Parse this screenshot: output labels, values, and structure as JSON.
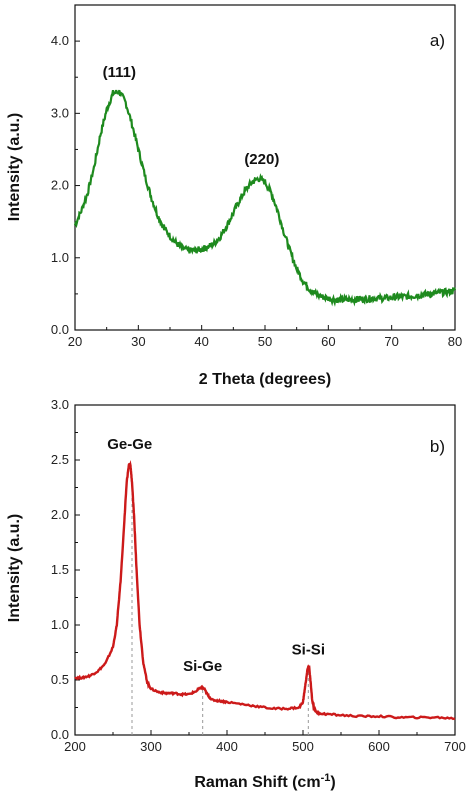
{
  "chart_data": [
    {
      "type": "line",
      "panel_label": "a)",
      "xlabel": "2 Theta (degrees)",
      "ylabel": "Intensity (a.u.)",
      "xlim": [
        20,
        80
      ],
      "ylim": [
        0.0,
        4.5
      ],
      "xticks": [
        20,
        30,
        40,
        50,
        60,
        70,
        80
      ],
      "xtick_labels": [
        "20",
        "30",
        "40",
        "50",
        "60",
        "70",
        "80"
      ],
      "yticks": [
        0.0,
        1.0,
        2.0,
        3.0,
        4.0
      ],
      "ytick_labels": [
        "0.0",
        "1.0",
        "2.0",
        "3.0",
        "4.0"
      ],
      "grid": false,
      "legend": "none",
      "color": "#1e8a1e",
      "series": [
        {
          "x": [
            20,
            21,
            22,
            23,
            24,
            25,
            26,
            27,
            28,
            29,
            30,
            31,
            32,
            33,
            34,
            35,
            36,
            37,
            38,
            39,
            40,
            41,
            42,
            43,
            44,
            45,
            46,
            47,
            48,
            49,
            50,
            51,
            52,
            53,
            54,
            55,
            56,
            57,
            58,
            59,
            60,
            61,
            62,
            63,
            64,
            65,
            66,
            67,
            68,
            69,
            70,
            71,
            72,
            73,
            74,
            75,
            76,
            77,
            78,
            79,
            80
          ],
          "y": [
            1.45,
            1.65,
            1.9,
            2.25,
            2.7,
            3.05,
            3.28,
            3.3,
            3.15,
            2.85,
            2.5,
            2.15,
            1.85,
            1.6,
            1.42,
            1.3,
            1.2,
            1.13,
            1.1,
            1.1,
            1.12,
            1.15,
            1.2,
            1.3,
            1.45,
            1.62,
            1.8,
            1.95,
            2.05,
            2.1,
            2.05,
            1.9,
            1.65,
            1.35,
            1.08,
            0.85,
            0.68,
            0.57,
            0.5,
            0.46,
            0.44,
            0.42,
            0.42,
            0.42,
            0.42,
            0.43,
            0.43,
            0.44,
            0.44,
            0.44,
            0.45,
            0.46,
            0.46,
            0.47,
            0.48,
            0.49,
            0.5,
            0.51,
            0.52,
            0.53,
            0.55
          ]
        }
      ],
      "annotations": [
        {
          "text": "(111)",
          "x": 27,
          "y": 3.5
        },
        {
          "text": "(220)",
          "x": 49.5,
          "y": 2.3
        }
      ]
    },
    {
      "type": "line",
      "panel_label": "b)",
      "xlabel_main": "Raman Shift (cm",
      "xlabel_sup": "-1",
      "xlabel_end": ")",
      "ylabel": "Intensity (a.u.)",
      "xlim": [
        200,
        700
      ],
      "ylim": [
        0.0,
        3.0
      ],
      "xticks": [
        200,
        300,
        400,
        500,
        600,
        700
      ],
      "xtick_labels": [
        "200",
        "300",
        "400",
        "500",
        "600",
        "700"
      ],
      "yticks": [
        0.0,
        0.5,
        1.0,
        1.5,
        2.0,
        2.5,
        3.0
      ],
      "ytick_labels": [
        "0.0",
        "0.5",
        "1.0",
        "1.5",
        "2.0",
        "2.5",
        "3.0"
      ],
      "grid": false,
      "legend": "none",
      "color": "#cc1a1a",
      "series": [
        {
          "x": [
            200,
            210,
            220,
            230,
            240,
            250,
            255,
            260,
            265,
            268,
            271,
            273,
            275,
            278,
            281,
            285,
            290,
            295,
            300,
            310,
            320,
            330,
            340,
            350,
            360,
            365,
            370,
            375,
            380,
            390,
            400,
            420,
            440,
            460,
            480,
            495,
            500,
            503,
            506,
            508,
            510,
            512,
            515,
            520,
            530,
            550,
            575,
            600,
            625,
            650,
            675,
            700
          ],
          "y": [
            0.52,
            0.52,
            0.54,
            0.58,
            0.65,
            0.8,
            1.0,
            1.4,
            1.95,
            2.3,
            2.46,
            2.45,
            2.3,
            1.95,
            1.5,
            1.0,
            0.65,
            0.48,
            0.42,
            0.39,
            0.38,
            0.38,
            0.37,
            0.37,
            0.4,
            0.43,
            0.42,
            0.36,
            0.32,
            0.31,
            0.3,
            0.28,
            0.26,
            0.24,
            0.24,
            0.25,
            0.3,
            0.45,
            0.6,
            0.63,
            0.48,
            0.32,
            0.23,
            0.2,
            0.19,
            0.18,
            0.17,
            0.17,
            0.16,
            0.16,
            0.16,
            0.15
          ]
        }
      ],
      "annotations": [
        {
          "text": "Ge-Ge",
          "x": 272,
          "y": 2.6
        },
        {
          "text": "Si-Ge",
          "x": 368,
          "y": 0.58
        },
        {
          "text": "Si-Si",
          "x": 507,
          "y": 0.73
        }
      ],
      "reference_lines_x": [
        275,
        368,
        507
      ],
      "reference_line_color": "#999999"
    }
  ]
}
